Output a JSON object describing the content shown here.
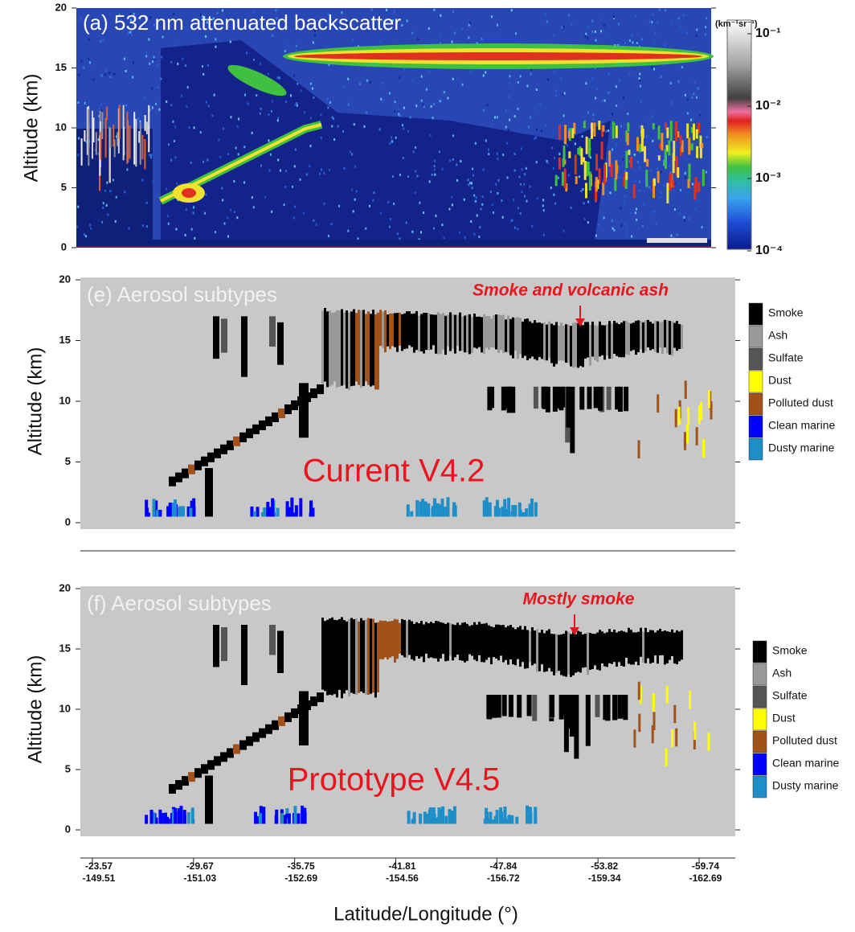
{
  "chart_data": [
    {
      "type": "heatmap",
      "title": "(a) 532 nm attenuated backscatter",
      "ylabel": "Altitude (km)",
      "ylim": [
        0,
        20
      ],
      "yticks": [
        0,
        5,
        10,
        15,
        20
      ],
      "colorbar": {
        "label": "(km⁻¹sr⁻¹)",
        "scale": "log",
        "lim": [
          0.0001,
          0.1
        ],
        "ticks": [
          {
            "value": 0.1,
            "label": "10⁻¹"
          },
          {
            "value": 0.01,
            "label": "10⁻²"
          },
          {
            "value": 0.001,
            "label": "10⁻³"
          },
          {
            "value": 0.0001,
            "label": "10⁻⁴"
          }
        ]
      }
    },
    {
      "type": "heatmap",
      "title": "(e) Aerosol subtypes",
      "ylabel": "Altitude (km)",
      "ylim": [
        0,
        20
      ],
      "yticks": [
        0,
        5,
        10,
        15,
        20
      ],
      "annotation": "Smoke and volcanic ash",
      "watermark": "Current V4.2",
      "legend": {
        "categories": [
          "Smoke",
          "Ash",
          "Sulfate",
          "Dust",
          "Polluted dust",
          "Clean marine",
          "Dusty marine"
        ],
        "colors": [
          "#000000",
          "#999999",
          "#555555",
          "#ffff00",
          "#a0521a",
          "#0000ff",
          "#1e8ec8"
        ]
      }
    },
    {
      "type": "heatmap",
      "title": "(f) Aerosol subtypes",
      "ylabel": "Altitude (km)",
      "ylim": [
        0,
        20
      ],
      "yticks": [
        0,
        5,
        10,
        15,
        20
      ],
      "annotation": "Mostly smoke",
      "watermark": "Prototype V4.5",
      "legend": {
        "categories": [
          "Smoke",
          "Ash",
          "Sulfate",
          "Dust",
          "Polluted dust",
          "Clean marine",
          "Dusty marine"
        ],
        "colors": [
          "#000000",
          "#999999",
          "#555555",
          "#ffff00",
          "#a0521a",
          "#0000ff",
          "#1e8ec8"
        ]
      },
      "xticks_lat": [
        "-23.57",
        "-29.67",
        "-35.75",
        "-41.81",
        "-47.84",
        "-53.82",
        "-59.74"
      ],
      "xticks_lon": [
        "-149.51",
        "-151.03",
        "-152.69",
        "-154.56",
        "-156.72",
        "-159.34",
        "-162.69"
      ],
      "xlabel": "Latitude/Longitude (°)"
    }
  ]
}
